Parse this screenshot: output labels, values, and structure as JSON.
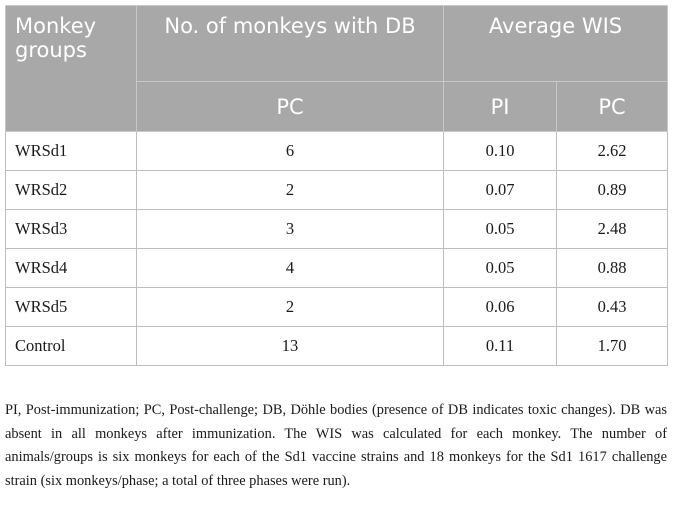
{
  "table": {
    "header": {
      "group": "Monkey groups",
      "db": "No. of monkeys with DB",
      "wis": "Average WIS",
      "db_sub": "PC",
      "wis_sub_pi": "PI",
      "wis_sub_pc": "PC"
    },
    "rows": [
      {
        "group": "WRSd1",
        "db_pc": "6",
        "wis_pi": "0.10",
        "wis_pc": "2.62"
      },
      {
        "group": "WRSd2",
        "db_pc": "2",
        "wis_pi": "0.07",
        "wis_pc": "0.89"
      },
      {
        "group": "WRSd3",
        "db_pc": "3",
        "wis_pi": "0.05",
        "wis_pc": "2.48"
      },
      {
        "group": "WRSd4",
        "db_pc": "4",
        "wis_pi": "0.05",
        "wis_pc": "0.88"
      },
      {
        "group": "WRSd5",
        "db_pc": "2",
        "wis_pi": "0.06",
        "wis_pc": "0.43"
      },
      {
        "group": "Control",
        "db_pc": "13",
        "wis_pi": "0.11",
        "wis_pc": "1.70"
      }
    ]
  },
  "footnote": "PI, Post-immunization; PC, Post-challenge; DB, Döhle bodies (presence of DB indicates toxic changes). DB was absent in all monkeys after immunization. The WIS was calculated for each monkey. The number of animals/groups is six monkeys for each of the Sd1 vaccine strains and 18 monkeys for the Sd1 1617 challenge strain (six monkeys/phase; a total of three phases were run).",
  "colors": {
    "header_bg": "#a8a8a8",
    "header_text": "#ffffff",
    "border": "#bdbdbd"
  }
}
